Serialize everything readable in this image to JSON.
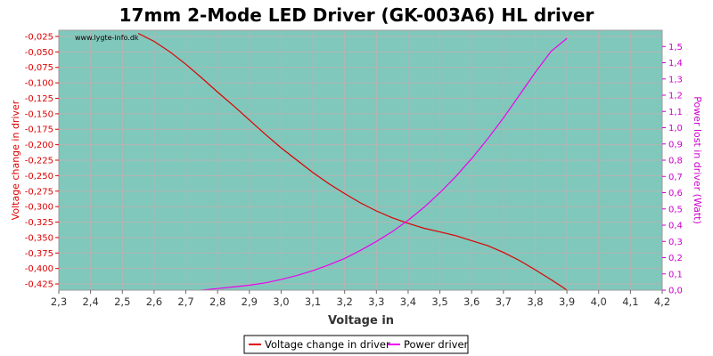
{
  "chart_data": {
    "type": "line",
    "title": "17mm 2-Mode LED Driver (GK-003A6) HL driver",
    "watermark": "www.lygte-info.dk",
    "xlabel": "Voltage in",
    "ylabel_left": "Voltage change in driver",
    "ylabel_right": "Power lost in driver (Watt)",
    "xlim": [
      2.3,
      4.2
    ],
    "ylim_left": [
      -0.435,
      -0.015
    ],
    "ylim_right": [
      0.0,
      1.6
    ],
    "x_ticks": [
      "2,3",
      "2,4",
      "2,5",
      "2,6",
      "2,7",
      "2,8",
      "2,9",
      "3,0",
      "3,1",
      "3,2",
      "3,3",
      "3,4",
      "3,5",
      "3,6",
      "3,7",
      "3,8",
      "3,9",
      "4,0",
      "4,1",
      "4,2"
    ],
    "y_left_ticks": [
      "-0,025",
      "-0,050",
      "-0,075",
      "-0,100",
      "-0,125",
      "-0,150",
      "-0,175",
      "-0,200",
      "-0,225",
      "-0,250",
      "-0,275",
      "-0,300",
      "-0,325",
      "-0,350",
      "-0,375",
      "-0,400",
      "-0,425"
    ],
    "y_right_ticks": [
      "0,0",
      "0,1",
      "0,2",
      "0,3",
      "0,4",
      "0,5",
      "0,6",
      "0,7",
      "0,8",
      "0,9",
      "1,0",
      "1,1",
      "1,2",
      "1,3",
      "1,4",
      "1,5"
    ],
    "grid": true,
    "legend_position": "bottom-center",
    "colors": {
      "plot_bg": "#7fc8bb",
      "left_axis": "#dd0000",
      "right_axis": "#cc00cc",
      "grid": "#b4b4b4"
    },
    "series": [
      {
        "name": "Voltage change in driver",
        "axis": "left",
        "color": "#dd0000",
        "x": [
          2.55,
          2.6,
          2.65,
          2.7,
          2.75,
          2.8,
          2.85,
          2.9,
          2.95,
          3.0,
          3.05,
          3.1,
          3.15,
          3.2,
          3.25,
          3.3,
          3.35,
          3.4,
          3.45,
          3.5,
          3.55,
          3.6,
          3.65,
          3.7,
          3.75,
          3.8,
          3.85,
          3.88,
          3.9
        ],
        "y": [
          -0.02,
          -0.033,
          -0.05,
          -0.07,
          -0.092,
          -0.115,
          -0.137,
          -0.16,
          -0.183,
          -0.205,
          -0.225,
          -0.245,
          -0.263,
          -0.279,
          -0.294,
          -0.307,
          -0.318,
          -0.327,
          -0.335,
          -0.341,
          -0.347,
          -0.355,
          -0.363,
          -0.374,
          -0.387,
          -0.402,
          -0.418,
          -0.428,
          -0.435
        ]
      },
      {
        "name": "Power driver",
        "axis": "right",
        "color": "#ee00ee",
        "x": [
          2.75,
          2.8,
          2.85,
          2.9,
          2.95,
          3.0,
          3.05,
          3.1,
          3.15,
          3.2,
          3.25,
          3.3,
          3.35,
          3.4,
          3.45,
          3.5,
          3.55,
          3.6,
          3.65,
          3.7,
          3.75,
          3.8,
          3.85,
          3.9
        ],
        "y": [
          0.0,
          0.01,
          0.02,
          0.03,
          0.045,
          0.065,
          0.09,
          0.12,
          0.155,
          0.195,
          0.245,
          0.3,
          0.36,
          0.43,
          0.51,
          0.6,
          0.7,
          0.81,
          0.93,
          1.06,
          1.2,
          1.34,
          1.47,
          1.55
        ]
      }
    ]
  }
}
